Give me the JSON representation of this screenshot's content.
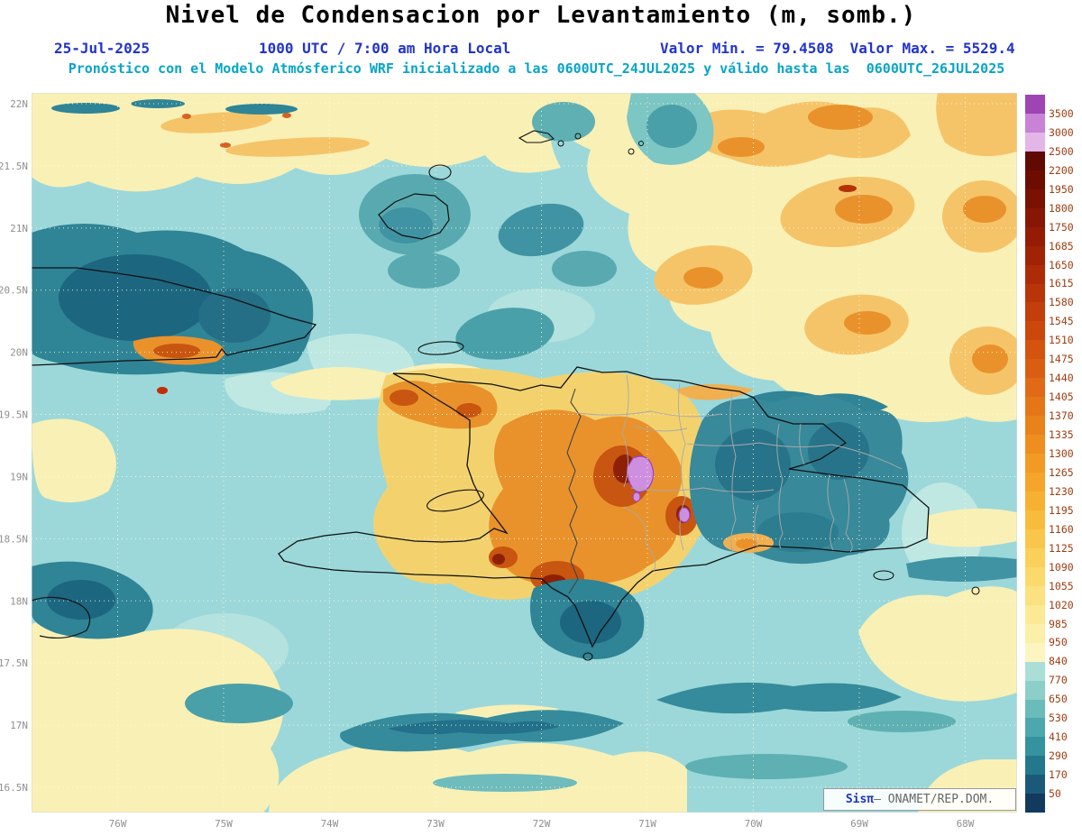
{
  "header": {
    "title": "Nivel de Condensacion por Levantamiento (m, somb.)",
    "date": "25-Jul-2025",
    "time": "1000 UTC / 7:00 am Hora Local",
    "min_label": "Valor Min. = 79.4508",
    "max_label": "Valor Max. = 5529.4",
    "forecast_line": "Pronóstico con el Modelo Atmósferico WRF inicializado a las 0600UTC_24JUL2025 y válido hasta las  0600UTC_26JUL2025"
  },
  "map": {
    "lat_ticks": [
      "22N",
      "21.5N",
      "21N",
      "20.5N",
      "20N",
      "19.5N",
      "19N",
      "18.5N",
      "18N",
      "17.5N",
      "17N",
      "16.5N"
    ],
    "lon_ticks": [
      "76W",
      "75W",
      "74W",
      "73W",
      "72W",
      "71W",
      "70W",
      "69W",
      "68W"
    ],
    "region": "Hispaniola / Eastern Cuba",
    "field": "Lifting Condensation Level (m, shaded)"
  },
  "colorbar": {
    "levels": [
      "3500",
      "3000",
      "2500",
      "2200",
      "1950",
      "1800",
      "1750",
      "1685",
      "1650",
      "1615",
      "1580",
      "1545",
      "1510",
      "1475",
      "1440",
      "1405",
      "1370",
      "1335",
      "1300",
      "1265",
      "1230",
      "1195",
      "1160",
      "1125",
      "1090",
      "1055",
      "1020",
      "985",
      "950",
      "840",
      "770",
      "650",
      "530",
      "410",
      "290",
      "170",
      "50"
    ],
    "colors": [
      "#9e44b4",
      "#c883d6",
      "#e3b6e8",
      "#600a02",
      "#6d0d02",
      "#7a1103",
      "#871604",
      "#941c05",
      "#a12306",
      "#ad2b07",
      "#b83409",
      "#c23e0b",
      "#cb480d",
      "#d3530f",
      "#da5e12",
      "#e06a15",
      "#e57618",
      "#ea821b",
      "#ee8e1f",
      "#f19a24",
      "#f4a52a",
      "#f6b132",
      "#f8bc3d",
      "#f9c64b",
      "#fad05b",
      "#fbd96c",
      "#fbe17f",
      "#fce993",
      "#fcefa8",
      "#fdf5c0",
      "#aadfd8",
      "#8ccfc9",
      "#69bcba",
      "#4da8ad",
      "#35929f",
      "#23788e",
      "#1a5a78",
      "#123a5e"
    ]
  },
  "attribution": {
    "brand": "Sisπ",
    "text": "— ONAMET/REP.DOM."
  },
  "accent_colors": {
    "subtitle_blue": "#2233cc",
    "forecast_cyan": "#08a5c5",
    "colorbar_label": "#9c3c10",
    "axis_gray": "#909090"
  }
}
